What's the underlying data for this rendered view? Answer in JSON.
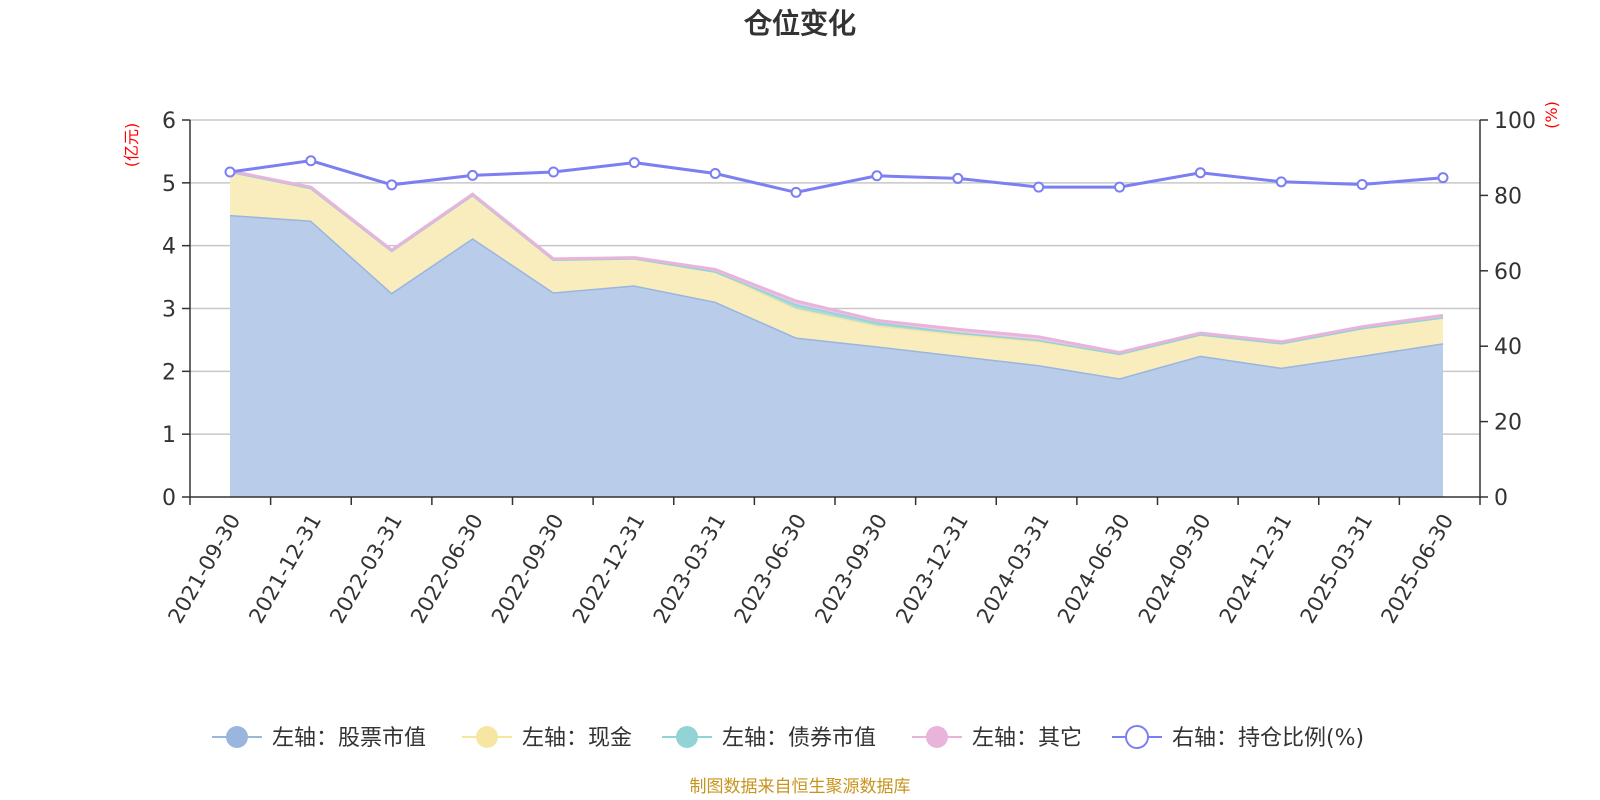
{
  "chart_data": {
    "type": "area",
    "title": "仓位变化",
    "left_axis": {
      "label": "(亿元)",
      "ylim": [
        0,
        6
      ],
      "ticks": [
        0,
        1,
        2,
        3,
        4,
        5,
        6
      ],
      "label_color": "#ff0000"
    },
    "right_axis": {
      "label": "(%)",
      "ylim": [
        0,
        100
      ],
      "ticks": [
        0,
        20,
        40,
        60,
        80,
        100
      ],
      "label_color": "#ff0000"
    },
    "categories": [
      "2021-09-30",
      "2021-12-31",
      "2022-03-31",
      "2022-06-30",
      "2022-09-30",
      "2022-12-31",
      "2023-03-31",
      "2023-06-30",
      "2023-09-30",
      "2023-12-31",
      "2024-03-31",
      "2024-06-30",
      "2024-09-30",
      "2024-12-31",
      "2025-03-31",
      "2025-06-30"
    ],
    "stacked_series": [
      {
        "name": "左轴：股票市值",
        "axis": "left",
        "color": "#9ab5de",
        "fill": "#b9cdeb",
        "values": [
          4.49,
          4.4,
          3.25,
          4.12,
          3.26,
          3.37,
          3.11,
          2.54,
          2.4,
          2.25,
          2.1,
          1.89,
          2.25,
          2.06,
          2.25,
          2.45
        ]
      },
      {
        "name": "左轴：现金",
        "axis": "left",
        "color": "#f7e6a2",
        "fill": "#f9edbd",
        "values": [
          0.69,
          0.52,
          0.67,
          0.69,
          0.52,
          0.43,
          0.48,
          0.46,
          0.33,
          0.34,
          0.38,
          0.39,
          0.34,
          0.39,
          0.44,
          0.41
        ]
      },
      {
        "name": "左轴：债券市值",
        "axis": "left",
        "color": "#92d3d6",
        "fill": "#a7dcdf",
        "values": [
          0,
          0,
          0,
          0,
          0,
          0,
          0,
          0.07,
          0.05,
          0.03,
          0.02,
          0,
          0,
          0,
          0,
          0
        ]
      },
      {
        "name": "左轴：其它",
        "axis": "left",
        "color": "#e8b4dc",
        "fill": "#efc8e6",
        "values": [
          0.01,
          0.01,
          0.01,
          0.01,
          0.01,
          0.01,
          0.03,
          0.05,
          0.03,
          0.05,
          0.05,
          0.02,
          0.02,
          0.02,
          0.02,
          0.03
        ]
      }
    ],
    "line_series": {
      "name": "右轴：持仓比例(%)",
      "axis": "right",
      "color": "#7b7ff2",
      "values": [
        86.2,
        89.2,
        82.8,
        85.3,
        86.2,
        88.7,
        85.8,
        80.8,
        85.2,
        84.5,
        82.2,
        82.2,
        86.0,
        83.6,
        82.9,
        84.7
      ]
    },
    "grid": true,
    "legend_position": "bottom"
  },
  "source_text": "制图数据来自恒生聚源数据库",
  "source_color": "#c8941e"
}
